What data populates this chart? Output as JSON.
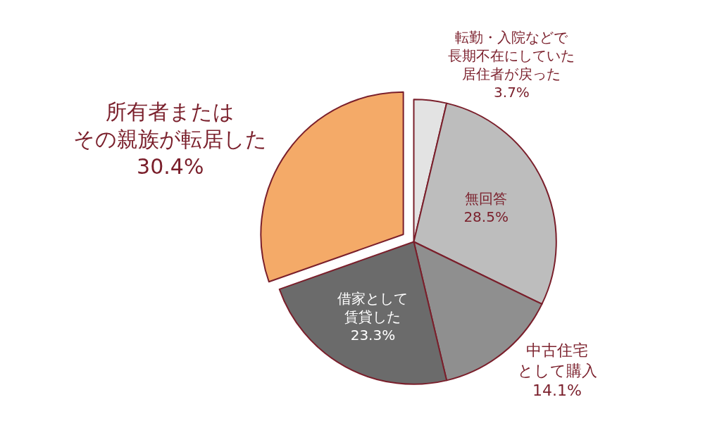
{
  "chart_data": {
    "type": "pie",
    "categories": [
      "転勤・入院などで長期不在にしていた居住者が戻った",
      "無回答",
      "中古住宅として購入",
      "借家として賃貸した",
      "所有者またはその親族が転居した"
    ],
    "values": [
      3.7,
      28.5,
      14.1,
      23.3,
      30.4
    ],
    "value_labels": [
      "3.7%",
      "28.5%",
      "14.1%",
      "23.3%",
      "30.4%"
    ],
    "colors": [
      "#e3e3e3",
      "#bdbdbd",
      "#8f8f8f",
      "#6b6b6b",
      "#f4aa68"
    ],
    "legend": false
  }
}
